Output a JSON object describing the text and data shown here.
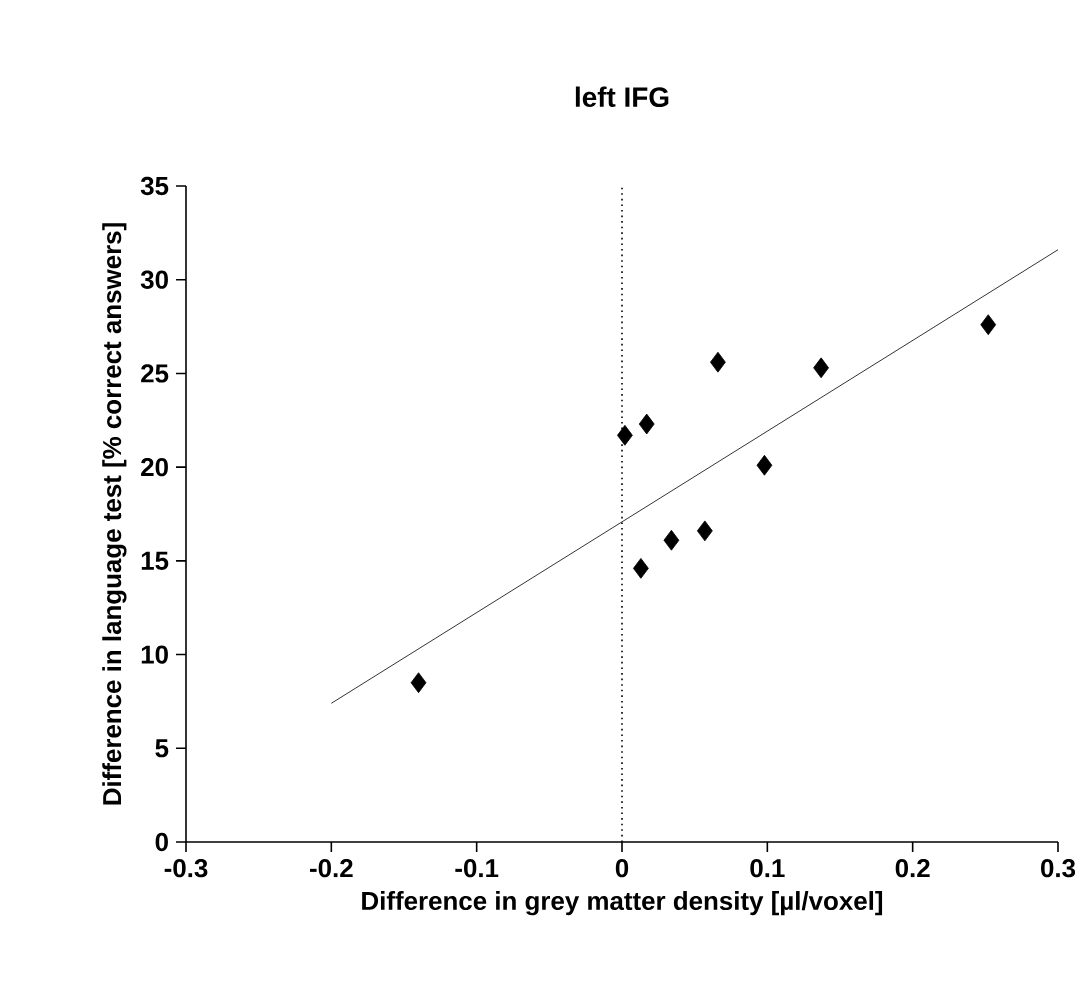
{
  "chart_data": {
    "type": "scatter",
    "title": "left IFG",
    "xlabel": "Difference in grey matter density [µl/voxel]",
    "ylabel": "Difference in language test [% correct answers]",
    "grid": false,
    "series": [
      {
        "marker": "diamond",
        "color": "#000000",
        "x": [
          -0.14,
          0.002,
          0.017,
          0.013,
          0.034,
          0.057,
          0.066,
          0.098,
          0.137,
          0.252
        ],
        "values": [
          8.5,
          21.7,
          22.3,
          14.6,
          16.1,
          16.6,
          25.6,
          20.1,
          25.3,
          27.6
        ]
      },
      {
        "type": "line",
        "marker": "none",
        "color": "#000000",
        "line_style": "solid",
        "x": [
          -0.2,
          0.3
        ],
        "values": [
          7.4,
          31.6
        ]
      }
    ],
    "ref_lines": [
      {
        "axis": "x",
        "value": 0,
        "line_style": "dotted",
        "color": "#000000"
      }
    ],
    "xlim": [
      -0.3,
      0.3
    ],
    "xticks": [
      -0.3,
      -0.2,
      -0.1,
      0,
      0.1,
      0.2,
      0.3
    ],
    "ylim": [
      0,
      35
    ],
    "yticks": [
      0,
      5,
      10,
      15,
      20,
      25,
      30,
      35
    ]
  }
}
